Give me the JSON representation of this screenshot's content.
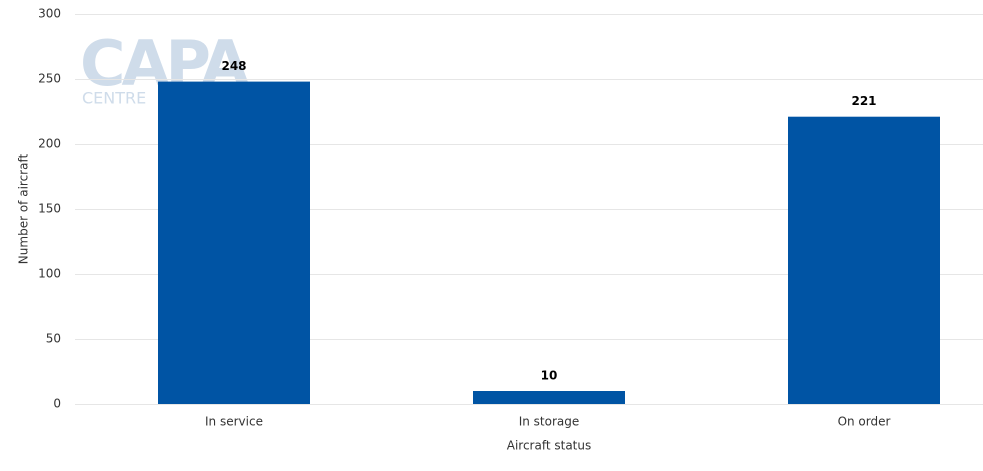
{
  "chart_data": {
    "type": "bar",
    "watermark": {
      "logo": "CAPA",
      "subtitle": "CENTRE"
    },
    "x_label": "Aircraft status",
    "y_label": "Number of aircraft",
    "categories": [
      "In service",
      "In storage",
      "On order"
    ],
    "values": [
      248,
      10,
      221
    ],
    "color": "#0054a4",
    "ylim": [
      0,
      300
    ],
    "yticks": [
      0,
      50,
      100,
      150,
      200,
      250,
      300
    ],
    "grid": true
  }
}
